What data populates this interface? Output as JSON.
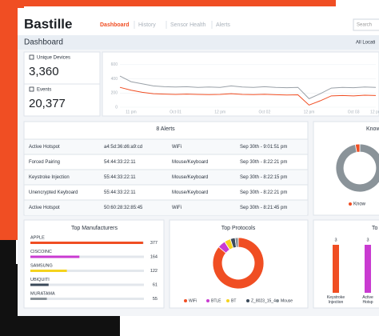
{
  "header": {
    "logo": "Bastille",
    "nav": [
      "Dashboard",
      "History",
      "Sensor Health",
      "Alerts"
    ],
    "search": "Search"
  },
  "subheader": {
    "title": "Dashboard",
    "location": "All Locati"
  },
  "stats": [
    {
      "label": "Unique Devices",
      "value": "3,360"
    },
    {
      "label": "Events",
      "value": "20,377"
    }
  ],
  "events_chart": {
    "type": "line",
    "x": [
      null,
      "11 pm",
      null,
      null,
      null,
      "Oct 01",
      null,
      null,
      null,
      "12 pm",
      null,
      null,
      null,
      "Oct 02",
      null,
      null,
      null,
      "12 pm",
      null,
      null,
      null,
      "Oct 03",
      null,
      "12 pm"
    ],
    "series": [
      {
        "color": "#9aa1a8",
        "values": [
          440,
          360,
          330,
          300,
          290,
          285,
          290,
          280,
          285,
          280,
          300,
          285,
          280,
          290,
          280,
          275,
          280,
          120,
          190,
          270,
          280,
          275,
          285,
          280
        ]
      },
      {
        "color": "#f04e23",
        "values": [
          280,
          240,
          210,
          190,
          185,
          180,
          185,
          180,
          178,
          180,
          190,
          180,
          178,
          182,
          176,
          172,
          175,
          30,
          90,
          160,
          165,
          160,
          170,
          165
        ]
      }
    ],
    "ylim": [
      0,
      700
    ],
    "yticks": [
      0,
      200,
      400,
      600
    ]
  },
  "alerts": {
    "title": "8 Alerts",
    "rows": [
      [
        "Active Hotspot",
        "a4:5d:36:d6:a9:cd",
        "WiFi",
        "Sep 30th - 9:01:51 pm"
      ],
      [
        "Forced Pairing",
        "54:44:33:22:11",
        "Mouse/Keyboard",
        "Sep 30th - 8:22:21 pm"
      ],
      [
        "Keystroke Injection",
        "55:44:33:22:11",
        "Mouse/Keyboard",
        "Sep 30th - 8:22:15 pm"
      ],
      [
        "Unencrypted Keyboard",
        "55:44:33:22:11",
        "Mouse/Keyboard",
        "Sep 30th - 8:22:21 pm"
      ],
      [
        "Active Hotspot",
        "50:60:28:32:85:45",
        "WiFi",
        "Sep 30th - 8:21:45 pm"
      ]
    ]
  },
  "known": {
    "type": "pie",
    "title": "Know",
    "legend": "Know",
    "values": [
      97,
      3
    ],
    "colors": [
      "#8a9399",
      "#f04e23"
    ]
  },
  "manufacturers": {
    "type": "bar",
    "title": "Top Manufacturers",
    "xlim": [
      0,
      380
    ],
    "categories": [
      "APPLE",
      "CISCOINC",
      "SAMSUNG",
      "UBIQUITI",
      "MURATAMA"
    ],
    "values": [
      377,
      164,
      122,
      61,
      55
    ],
    "colors": [
      "#f04e23",
      "#c93bd1",
      "#f5d31d",
      "#3b4a5a",
      "#8a9399"
    ]
  },
  "protocols": {
    "type": "pie",
    "title": "Top Protocols",
    "categories": [
      "WiFi",
      "BTLE",
      "BT",
      "Z_8023_15_4",
      "Mouse"
    ],
    "values": [
      86,
      5,
      4,
      3,
      2
    ],
    "colors": [
      "#f04e23",
      "#c93bd1",
      "#f5d31d",
      "#3b4a5a",
      "#8a9399"
    ]
  },
  "top_alerts": {
    "type": "bar",
    "title": "To",
    "categories": [
      "Keystroke Injection",
      "Active Hotsp"
    ],
    "values": [
      3,
      3
    ],
    "ylim": [
      0,
      3
    ],
    "colors": [
      "#f04e23",
      "#c93bd1"
    ]
  }
}
